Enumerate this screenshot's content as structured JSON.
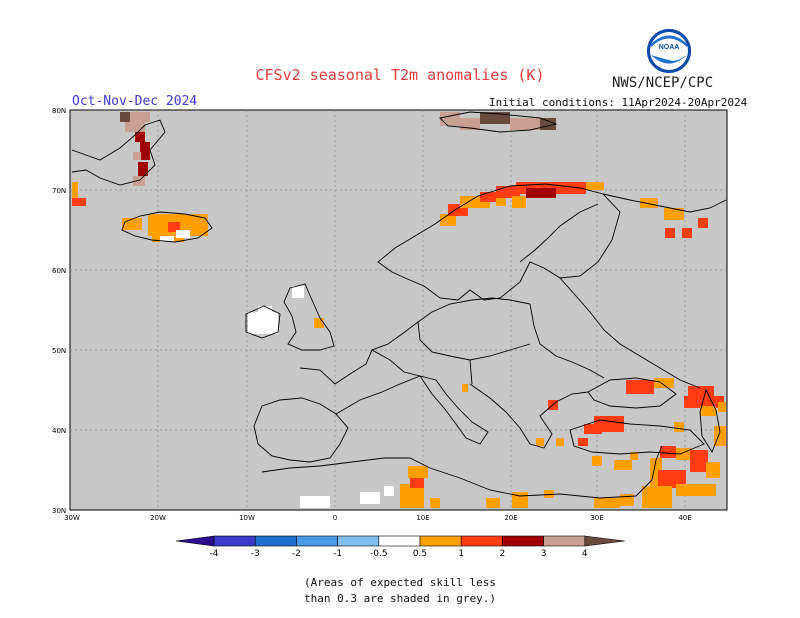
{
  "header": {
    "title": "CFSv2 seasonal T2m anomalies (K)",
    "agency": "NWS/NCEP/CPC",
    "season": "Oct-Nov-Dec 2024",
    "initial_conditions": "Initial conditions: 11Apr2024-20Apr2024",
    "logo_text": "NOAA"
  },
  "map": {
    "lat_labels": [
      "80N",
      "70N",
      "60N",
      "50N",
      "40N",
      "30N"
    ],
    "lon_labels": [
      "30W",
      "20W",
      "10W",
      "0",
      "10E",
      "20E",
      "30E",
      "40E"
    ],
    "land_color": "#c8c8c8"
  },
  "legend": {
    "labels": [
      "-4",
      "-3",
      "-2",
      "-1",
      "-0.5",
      "0.5",
      "1",
      "2",
      "3",
      "4"
    ],
    "colors": [
      "#2b0f8e",
      "#3a3ac8",
      "#1f6fd2",
      "#4b9ae6",
      "#7fbff2",
      "#ffffff",
      "#ff9f00",
      "#ff3c12",
      "#a00000",
      "#c8a094",
      "#6b4a3e"
    ]
  },
  "notes": {
    "line1": "(Areas of expected skill less",
    "line2": "than 0.3 are shaded in grey.)"
  }
}
